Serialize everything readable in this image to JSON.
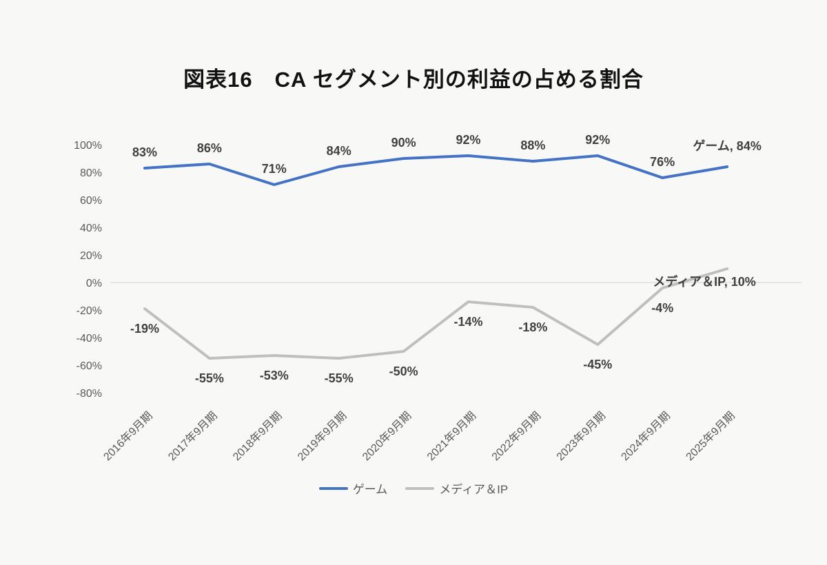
{
  "title": "図表16　CA セグメント別の利益の占める割合",
  "colors": {
    "background": "#F8F8F6",
    "gridline": "#D9D9D9",
    "axis_text": "#595959",
    "data_label": "#404040",
    "title_text": "#111111",
    "series_game": "#4472C4",
    "series_media": "#BFBFBF"
  },
  "chart_data": {
    "type": "line",
    "title": "図表16　CA セグメント別の利益の占める割合",
    "categories": [
      "2016年9月期",
      "2017年9月期",
      "2018年9月期",
      "2019年9月期",
      "2020年9月期",
      "2021年9月期",
      "2022年9月期",
      "2023年9月期",
      "2024年9月期",
      "2025年9月期"
    ],
    "series": [
      {
        "name": "ゲーム",
        "color": "#4472C4",
        "values": [
          83,
          86,
          71,
          84,
          90,
          92,
          88,
          92,
          76,
          84
        ],
        "end_label": "ゲーム, 84%"
      },
      {
        "name": "メディア＆IP",
        "color": "#BFBFBF",
        "values": [
          -19,
          -55,
          -53,
          -55,
          -50,
          -14,
          -18,
          -45,
          -4,
          10
        ],
        "end_label": "メディア＆IP, 10%"
      }
    ],
    "data_label_suffix": "%",
    "y_ticks": [
      {
        "label": "100%",
        "value": 100
      },
      {
        "label": "80%",
        "value": 80
      },
      {
        "label": "60%",
        "value": 60
      },
      {
        "label": "40%",
        "value": 40
      },
      {
        "label": "20%",
        "value": 20
      },
      {
        "label": "0%",
        "value": 0
      },
      {
        "label": "-20%",
        "value": -20
      },
      {
        "label": "-40%",
        "value": -40
      },
      {
        "label": "-60%",
        "value": -60
      },
      {
        "label": "-80%",
        "value": -80
      }
    ],
    "ylim": [
      -80,
      100
    ],
    "xlabel": "",
    "ylabel": "",
    "grid": "zero-line-only",
    "legend_position": "bottom"
  }
}
